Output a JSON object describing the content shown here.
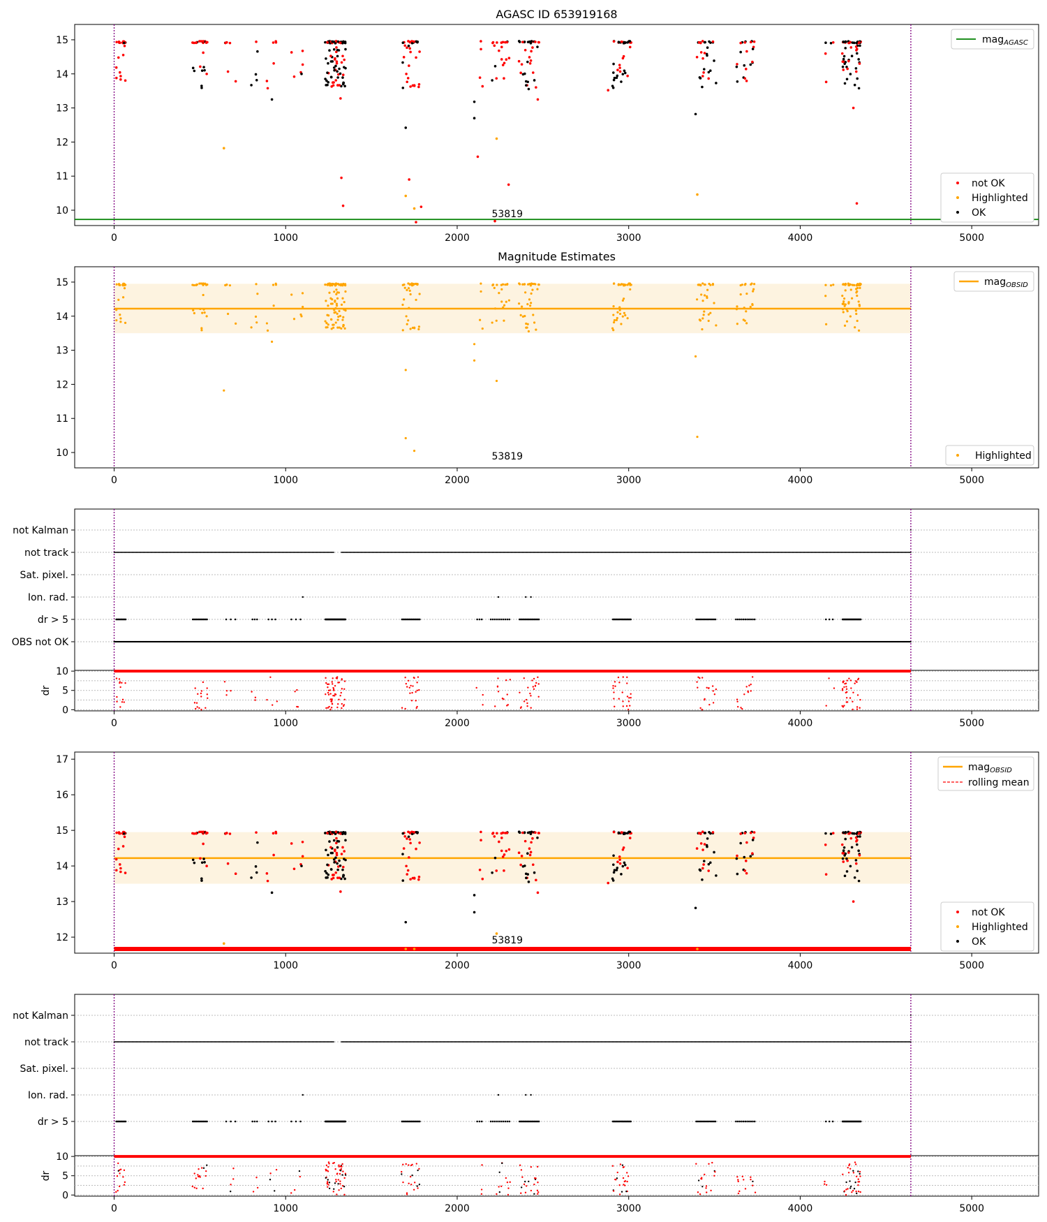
{
  "figure": {
    "title": "AGASC ID 653919168",
    "obsid_label": "53819",
    "x_ticks": [
      0,
      1000,
      2000,
      3000,
      4000,
      5000
    ],
    "xlim": [
      -230,
      5390
    ],
    "x_start": 0,
    "x_end": 4645,
    "colors": {
      "not_ok": "#ff0000",
      "highlighted": "#ffa500",
      "ok": "#000000",
      "agasc_line": "#008000",
      "obsid_line": "#ffa500",
      "obsid_band": "#fdf3e0",
      "boundary": "#800080",
      "rolling_mean": "#ff0000"
    }
  },
  "chart_data": [
    {
      "type": "scatter",
      "id": "agasc",
      "title": "AGASC ID 653919168",
      "ylim": [
        9.55,
        15.45
      ],
      "y_ticks": [
        10,
        11,
        12,
        13,
        14,
        15
      ],
      "mag_agasc": 9.73,
      "legend_line": {
        "label": "mag",
        "sub": "AGASC",
        "position": "top-right"
      },
      "legend": {
        "position": "bottom-right",
        "entries": [
          "not OK",
          "Highlighted",
          "OK"
        ]
      },
      "outliers": {
        "not_ok": [
          [
            1325,
            10.95
          ],
          [
            1335,
            10.13
          ],
          [
            1720,
            10.9
          ],
          [
            1790,
            10.1
          ],
          [
            1760,
            9.65
          ],
          [
            2120,
            11.57
          ],
          [
            2300,
            10.75
          ],
          [
            2220,
            9.68
          ],
          [
            4330,
            10.2
          ],
          [
            1320,
            13.28
          ],
          [
            2470,
            13.25
          ],
          [
            2880,
            13.52
          ],
          [
            4310,
            13.0
          ]
        ],
        "highlighted": [
          [
            640,
            11.82
          ],
          [
            2230,
            12.1
          ],
          [
            1700,
            10.42
          ],
          [
            1750,
            10.05
          ],
          [
            3400,
            10.46
          ]
        ],
        "ok": [
          [
            1700,
            12.42
          ],
          [
            2100,
            13.18
          ],
          [
            2100,
            12.7
          ],
          [
            3390,
            12.82
          ],
          [
            920,
            13.25
          ],
          [
            800,
            13.67
          ]
        ]
      }
    },
    {
      "type": "scatter",
      "id": "estimates",
      "title": "Magnitude Estimates",
      "ylim": [
        9.55,
        15.45
      ],
      "y_ticks": [
        10,
        11,
        12,
        13,
        14,
        15
      ],
      "mag_obsid": 14.22,
      "band": [
        13.5,
        14.95
      ],
      "legend_line": {
        "label": "mag",
        "sub": "OBSID",
        "position": "top-right"
      },
      "legend": {
        "position": "bottom-right",
        "entries": [
          "Highlighted"
        ]
      },
      "outliers": {
        "highlighted": [
          [
            640,
            11.82
          ],
          [
            2230,
            12.1
          ],
          [
            1700,
            10.42
          ],
          [
            1750,
            10.05
          ],
          [
            3400,
            10.46
          ],
          [
            1700,
            12.42
          ],
          [
            2100,
            13.18
          ],
          [
            2100,
            12.7
          ],
          [
            3390,
            12.82
          ],
          [
            920,
            13.25
          ],
          [
            800,
            13.67
          ]
        ]
      }
    },
    {
      "type": "scatter",
      "id": "flags1",
      "categories": [
        "not Kalman",
        "not track",
        "Sat. pixel.",
        "Ion. rad.",
        "dr > 5",
        "OBS not OK"
      ],
      "ion_rad_x": [
        1100,
        2240,
        2400,
        2430
      ]
    },
    {
      "type": "scatter",
      "id": "dr1",
      "ylabel": "dr",
      "ylim": [
        -0.3,
        10.2
      ],
      "y_ticks": [
        0,
        5,
        10
      ]
    },
    {
      "type": "scatter",
      "id": "mag_detail",
      "ylim": [
        11.55,
        17.2
      ],
      "y_ticks": [
        12,
        13,
        14,
        15,
        16,
        17
      ],
      "mag_obsid": 14.22,
      "band": [
        13.5,
        14.95
      ],
      "legend_line": {
        "label": "mag",
        "sub": "OBSID",
        "position": "top-right",
        "extra": "rolling mean"
      },
      "legend": {
        "position": "bottom-right",
        "entries": [
          "not OK",
          "Highlighted",
          "OK"
        ]
      },
      "outliers": {
        "not_ok": [
          [
            1320,
            13.28
          ],
          [
            2470,
            13.25
          ],
          [
            2880,
            13.52
          ],
          [
            4310,
            13.0
          ]
        ],
        "highlighted": [
          [
            640,
            11.82
          ],
          [
            2230,
            12.1
          ]
        ],
        "ok": [
          [
            1700,
            12.42
          ],
          [
            2100,
            13.18
          ],
          [
            2100,
            12.7
          ],
          [
            3390,
            12.82
          ],
          [
            920,
            13.25
          ],
          [
            800,
            13.67
          ]
        ]
      }
    },
    {
      "type": "scatter",
      "id": "flags2",
      "categories": [
        "not Kalman",
        "not track",
        "Sat. pixel.",
        "Ion. rad.",
        "dr > 5"
      ],
      "ion_rad_x": [
        1100,
        2240,
        2400,
        2430
      ]
    },
    {
      "type": "scatter",
      "id": "dr2",
      "ylabel": "dr",
      "ylim": [
        -0.3,
        10.2
      ],
      "y_ticks": [
        0,
        5,
        10
      ]
    }
  ],
  "clusters": [
    {
      "c": 40,
      "w": 60,
      "n": 22,
      "ok": 0.1
    },
    {
      "c": 500,
      "w": 90,
      "n": 26,
      "ok": 0.5
    },
    {
      "c": 680,
      "w": 80,
      "n": 6,
      "ok": 0.2
    },
    {
      "c": 820,
      "w": 40,
      "n": 4,
      "ok": 0.6
    },
    {
      "c": 920,
      "w": 60,
      "n": 6,
      "ok": 0.3
    },
    {
      "c": 1060,
      "w": 80,
      "n": 6,
      "ok": 0.3
    },
    {
      "c": 1290,
      "w": 120,
      "n": 90,
      "ok": 0.6
    },
    {
      "c": 1730,
      "w": 110,
      "n": 36,
      "ok": 0.3
    },
    {
      "c": 2130,
      "w": 40,
      "n": 4,
      "ok": 0.3
    },
    {
      "c": 2250,
      "w": 120,
      "n": 20,
      "ok": 0.3
    },
    {
      "c": 2420,
      "w": 120,
      "n": 36,
      "ok": 0.6
    },
    {
      "c": 2960,
      "w": 110,
      "n": 40,
      "ok": 0.5
    },
    {
      "c": 3450,
      "w": 120,
      "n": 30,
      "ok": 0.5
    },
    {
      "c": 3680,
      "w": 120,
      "n": 22,
      "ok": 0.4
    },
    {
      "c": 4170,
      "w": 60,
      "n": 5,
      "ok": 0.2
    },
    {
      "c": 4300,
      "w": 110,
      "n": 60,
      "ok": 0.6
    }
  ]
}
